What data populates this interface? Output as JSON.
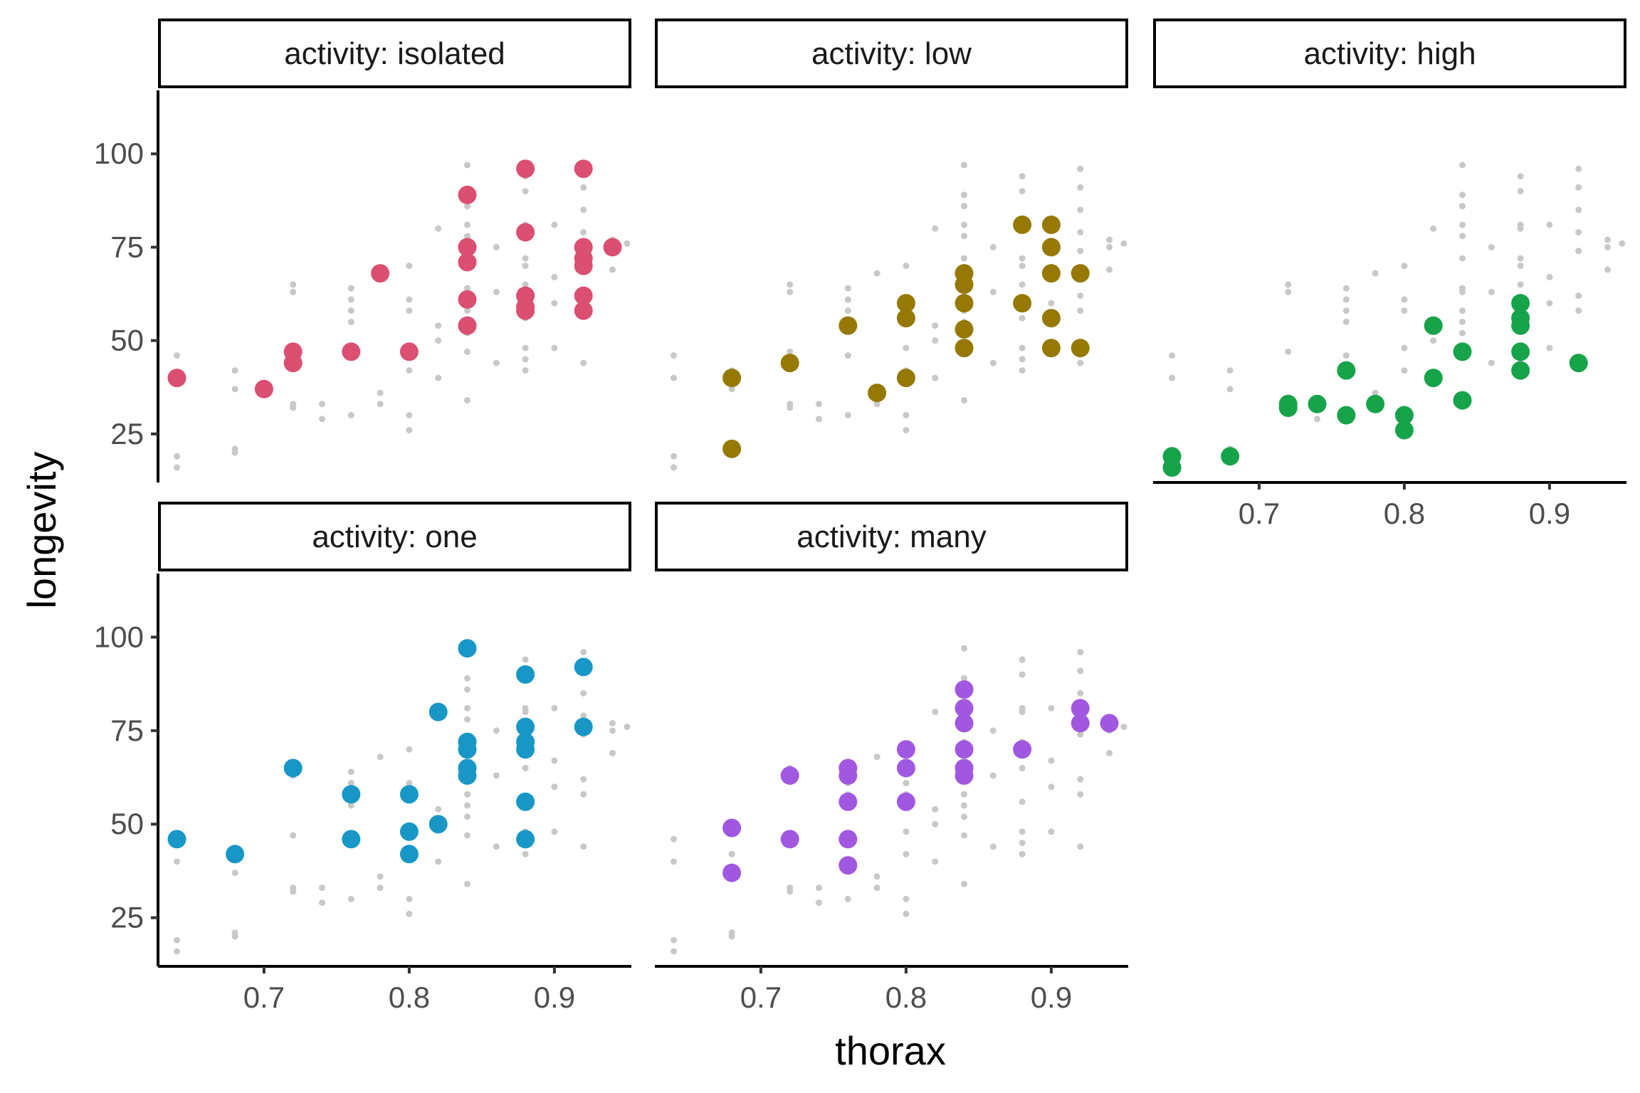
{
  "chart_data": {
    "type": "scatter",
    "facet_title_prefix": "activity: ",
    "xlabel": "thorax",
    "ylabel": "longevity",
    "xticks": [
      "0.7",
      "0.8",
      "0.9"
    ],
    "yticks": [
      "25",
      "50",
      "75",
      "100"
    ],
    "xlim": [
      0.627,
      0.953
    ],
    "ylim": [
      12,
      117
    ],
    "background_color": "#C8C8C8",
    "background_points": [
      [
        0.64,
        40
      ],
      [
        0.64,
        46
      ],
      [
        0.68,
        42
      ],
      [
        0.68,
        21
      ],
      [
        0.68,
        37
      ],
      [
        0.72,
        33
      ],
      [
        0.72,
        32
      ],
      [
        0.72,
        47
      ],
      [
        0.76,
        46
      ],
      [
        0.76,
        30
      ],
      [
        0.76,
        61
      ],
      [
        0.78,
        33
      ],
      [
        0.8,
        30
      ],
      [
        0.8,
        48
      ],
      [
        0.82,
        80
      ],
      [
        0.82,
        54
      ],
      [
        0.84,
        72
      ],
      [
        0.84,
        86
      ],
      [
        0.84,
        55
      ],
      [
        0.84,
        52
      ],
      [
        0.84,
        63
      ],
      [
        0.84,
        97
      ],
      [
        0.88,
        56
      ],
      [
        0.88,
        72
      ],
      [
        0.88,
        90
      ],
      [
        0.88,
        81
      ],
      [
        0.88,
        45
      ],
      [
        0.9,
        81
      ],
      [
        0.92,
        74
      ],
      [
        0.92,
        58
      ],
      [
        0.92,
        44
      ],
      [
        0.92,
        91
      ],
      [
        0.94,
        77
      ],
      [
        0.95,
        76
      ],
      [
        0.64,
        16
      ],
      [
        0.64,
        19
      ],
      [
        0.68,
        20
      ],
      [
        0.72,
        63
      ],
      [
        0.72,
        65
      ],
      [
        0.74,
        33
      ],
      [
        0.76,
        58
      ],
      [
        0.76,
        55
      ],
      [
        0.78,
        68
      ],
      [
        0.78,
        36
      ],
      [
        0.8,
        26
      ],
      [
        0.8,
        42
      ],
      [
        0.8,
        61
      ],
      [
        0.8,
        70
      ],
      [
        0.82,
        50
      ],
      [
        0.82,
        40
      ],
      [
        0.84,
        34
      ],
      [
        0.84,
        47
      ],
      [
        0.84,
        58
      ],
      [
        0.84,
        64
      ],
      [
        0.84,
        78
      ],
      [
        0.84,
        81
      ],
      [
        0.84,
        89
      ],
      [
        0.86,
        63
      ],
      [
        0.86,
        44
      ],
      [
        0.88,
        48
      ],
      [
        0.88,
        65
      ],
      [
        0.88,
        70
      ],
      [
        0.88,
        80
      ],
      [
        0.88,
        94
      ],
      [
        0.88,
        42
      ],
      [
        0.9,
        60
      ],
      [
        0.9,
        67
      ],
      [
        0.92,
        79
      ],
      [
        0.92,
        96
      ],
      [
        0.92,
        85
      ],
      [
        0.92,
        62
      ],
      [
        0.94,
        75
      ],
      [
        0.74,
        29
      ],
      [
        0.8,
        58
      ],
      [
        0.76,
        64
      ],
      [
        0.9,
        48
      ],
      [
        0.94,
        69
      ],
      [
        0.86,
        75
      ]
    ],
    "series": [
      {
        "name": "isolated",
        "color": "#DB4F71",
        "points": [
          [
            0.64,
            40
          ],
          [
            0.7,
            37
          ],
          [
            0.72,
            44
          ],
          [
            0.72,
            47
          ],
          [
            0.76,
            47
          ],
          [
            0.78,
            68
          ],
          [
            0.8,
            47
          ],
          [
            0.84,
            54
          ],
          [
            0.84,
            61
          ],
          [
            0.84,
            71
          ],
          [
            0.84,
            75
          ],
          [
            0.84,
            89
          ],
          [
            0.88,
            58
          ],
          [
            0.88,
            59
          ],
          [
            0.88,
            62
          ],
          [
            0.88,
            79
          ],
          [
            0.88,
            96
          ],
          [
            0.92,
            58
          ],
          [
            0.92,
            62
          ],
          [
            0.92,
            70
          ],
          [
            0.92,
            72
          ],
          [
            0.92,
            75
          ],
          [
            0.92,
            96
          ],
          [
            0.94,
            75
          ]
        ]
      },
      {
        "name": "low",
        "color": "#967905",
        "points": [
          [
            0.68,
            21
          ],
          [
            0.68,
            40
          ],
          [
            0.72,
            44
          ],
          [
            0.76,
            54
          ],
          [
            0.78,
            36
          ],
          [
            0.8,
            40
          ],
          [
            0.8,
            56
          ],
          [
            0.8,
            60
          ],
          [
            0.84,
            48
          ],
          [
            0.84,
            53
          ],
          [
            0.84,
            60
          ],
          [
            0.84,
            65
          ],
          [
            0.84,
            68
          ],
          [
            0.88,
            60
          ],
          [
            0.88,
            81
          ],
          [
            0.9,
            48
          ],
          [
            0.9,
            56
          ],
          [
            0.9,
            68
          ],
          [
            0.9,
            75
          ],
          [
            0.9,
            81
          ],
          [
            0.92,
            48
          ],
          [
            0.92,
            68
          ]
        ]
      },
      {
        "name": "high",
        "color": "#17A349",
        "points": [
          [
            0.64,
            16
          ],
          [
            0.64,
            19
          ],
          [
            0.68,
            19
          ],
          [
            0.72,
            32
          ],
          [
            0.72,
            33
          ],
          [
            0.74,
            33
          ],
          [
            0.76,
            30
          ],
          [
            0.76,
            42
          ],
          [
            0.78,
            33
          ],
          [
            0.8,
            26
          ],
          [
            0.8,
            30
          ],
          [
            0.82,
            40
          ],
          [
            0.82,
            54
          ],
          [
            0.84,
            34
          ],
          [
            0.84,
            47
          ],
          [
            0.88,
            42
          ],
          [
            0.88,
            47
          ],
          [
            0.88,
            54
          ],
          [
            0.88,
            56
          ],
          [
            0.88,
            60
          ],
          [
            0.92,
            44
          ]
        ]
      },
      {
        "name": "one",
        "color": "#1897C7",
        "points": [
          [
            0.64,
            46
          ],
          [
            0.68,
            42
          ],
          [
            0.72,
            65
          ],
          [
            0.76,
            46
          ],
          [
            0.76,
            58
          ],
          [
            0.8,
            42
          ],
          [
            0.8,
            48
          ],
          [
            0.8,
            58
          ],
          [
            0.82,
            50
          ],
          [
            0.82,
            80
          ],
          [
            0.84,
            63
          ],
          [
            0.84,
            65
          ],
          [
            0.84,
            70
          ],
          [
            0.84,
            72
          ],
          [
            0.84,
            97
          ],
          [
            0.88,
            46
          ],
          [
            0.88,
            56
          ],
          [
            0.88,
            70
          ],
          [
            0.88,
            72
          ],
          [
            0.88,
            76
          ],
          [
            0.88,
            90
          ],
          [
            0.92,
            76
          ],
          [
            0.92,
            92
          ]
        ]
      },
      {
        "name": "many",
        "color": "#A158E1",
        "points": [
          [
            0.68,
            37
          ],
          [
            0.68,
            49
          ],
          [
            0.72,
            46
          ],
          [
            0.72,
            63
          ],
          [
            0.76,
            39
          ],
          [
            0.76,
            46
          ],
          [
            0.76,
            56
          ],
          [
            0.76,
            63
          ],
          [
            0.76,
            65
          ],
          [
            0.8,
            56
          ],
          [
            0.8,
            65
          ],
          [
            0.8,
            70
          ],
          [
            0.84,
            63
          ],
          [
            0.84,
            65
          ],
          [
            0.84,
            70
          ],
          [
            0.84,
            77
          ],
          [
            0.84,
            81
          ],
          [
            0.84,
            86
          ],
          [
            0.88,
            70
          ],
          [
            0.92,
            77
          ],
          [
            0.92,
            81
          ],
          [
            0.94,
            77
          ]
        ]
      }
    ]
  }
}
